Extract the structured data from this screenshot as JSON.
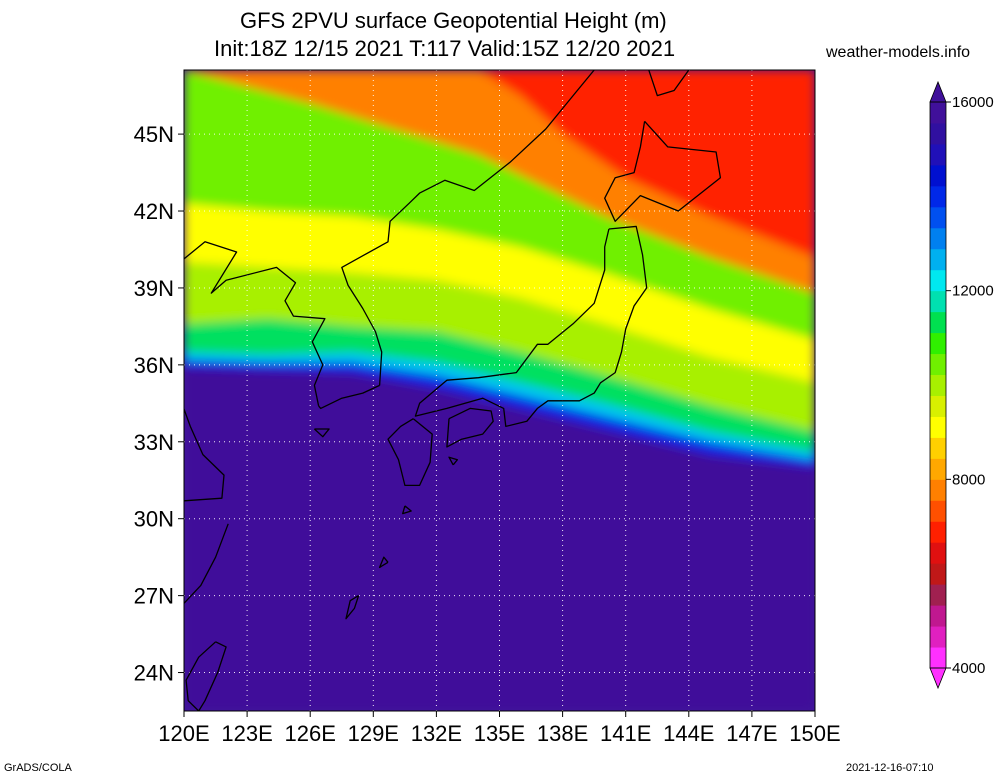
{
  "title": {
    "line1": "GFS 2PVU surface Geopotential Height (m)",
    "line2": "Init:18Z 12/15 2021 T:117 Valid:15Z 12/20 2021"
  },
  "site": "weather-models.info",
  "footer": {
    "left": "GrADS/COLA",
    "right": "2021-12-16-07:10"
  },
  "lat_labels": [
    "45N",
    "42N",
    "39N",
    "36N",
    "33N",
    "30N",
    "27N",
    "24N"
  ],
  "lon_labels": [
    "120E",
    "123E",
    "126E",
    "129E",
    "132E",
    "135E",
    "138E",
    "141E",
    "144E",
    "147E",
    "150E"
  ],
  "colorbar": {
    "labels": [
      "16000",
      "12000",
      "8000",
      "4000"
    ],
    "colors": [
      "#ff30ff",
      "#e020c0",
      "#c01890",
      "#a02050",
      "#c01818",
      "#e01010",
      "#ff2000",
      "#ff5000",
      "#ff8000",
      "#ffa800",
      "#ffd000",
      "#ffff00",
      "#d8f000",
      "#a8f000",
      "#70f000",
      "#30f000",
      "#00e050",
      "#00e0b0",
      "#00e8f0",
      "#00b0f0",
      "#0080f0",
      "#0050f0",
      "#0028e8",
      "#0010d0",
      "#2010b8",
      "#3010a0",
      "#40109a"
    ]
  },
  "map": {
    "lon_range": [
      120,
      150
    ],
    "lat_range": [
      22.5,
      47.5
    ],
    "bands": [
      {
        "color": "#40109a",
        "points": [
          [
            120,
            22.5
          ],
          [
            150,
            22.5
          ],
          [
            150,
            32
          ],
          [
            145,
            32.5
          ],
          [
            140,
            33.5
          ],
          [
            136,
            34.3
          ],
          [
            132,
            35.1
          ],
          [
            128,
            35.7
          ],
          [
            124,
            35.8
          ],
          [
            120,
            35.9
          ]
        ]
      },
      {
        "color": "#0028e8",
        "points": [
          [
            120,
            35.9
          ],
          [
            124,
            35.8
          ],
          [
            128,
            35.7
          ],
          [
            132,
            35.1
          ],
          [
            136,
            34.3
          ],
          [
            140,
            33.5
          ],
          [
            145,
            32.5
          ],
          [
            150,
            32
          ],
          [
            150,
            32.3
          ],
          [
            145,
            33
          ],
          [
            140,
            34
          ],
          [
            136,
            34.8
          ],
          [
            132,
            35.6
          ],
          [
            128,
            36.1
          ],
          [
            124,
            36.1
          ],
          [
            120,
            36.2
          ]
        ]
      },
      {
        "color": "#00c8f0",
        "points": [
          [
            120,
            36.2
          ],
          [
            124,
            36.1
          ],
          [
            128,
            36.1
          ],
          [
            132,
            35.6
          ],
          [
            136,
            34.8
          ],
          [
            140,
            34
          ],
          [
            145,
            33
          ],
          [
            150,
            32.3
          ],
          [
            150,
            32.6
          ],
          [
            145,
            33.4
          ],
          [
            140,
            34.5
          ],
          [
            136,
            35.3
          ],
          [
            132,
            36.1
          ],
          [
            128,
            36.5
          ],
          [
            124,
            36.4
          ],
          [
            120,
            36.5
          ]
        ]
      },
      {
        "color": "#00e060",
        "points": [
          [
            120,
            36.5
          ],
          [
            124,
            36.4
          ],
          [
            128,
            36.5
          ],
          [
            132,
            36.1
          ],
          [
            136,
            35.3
          ],
          [
            140,
            34.5
          ],
          [
            145,
            33.4
          ],
          [
            150,
            32.6
          ],
          [
            150,
            33.4
          ],
          [
            145,
            34.4
          ],
          [
            140,
            35.6
          ],
          [
            136,
            36.5
          ],
          [
            132,
            37.3
          ],
          [
            128,
            37.5
          ],
          [
            124,
            37.8
          ],
          [
            120,
            37.6
          ]
        ]
      },
      {
        "color": "#a8f000",
        "points": [
          [
            120,
            37.6
          ],
          [
            124,
            37.8
          ],
          [
            128,
            37.5
          ],
          [
            132,
            37.3
          ],
          [
            136,
            36.5
          ],
          [
            140,
            35.6
          ],
          [
            145,
            34.4
          ],
          [
            150,
            33.4
          ],
          [
            150,
            35.3
          ],
          [
            145,
            36.3
          ],
          [
            140,
            37.6
          ],
          [
            136,
            38.6
          ],
          [
            132,
            39.3
          ],
          [
            128,
            39.6
          ],
          [
            124,
            39.8
          ],
          [
            120,
            40
          ]
        ]
      },
      {
        "color": "#ffff00",
        "points": [
          [
            120,
            40
          ],
          [
            124,
            39.8
          ],
          [
            128,
            39.6
          ],
          [
            132,
            39.3
          ],
          [
            136,
            38.6
          ],
          [
            140,
            37.6
          ],
          [
            145,
            36.3
          ],
          [
            150,
            35.3
          ],
          [
            150,
            37
          ],
          [
            145,
            38.2
          ],
          [
            140,
            39.6
          ],
          [
            136,
            40.6
          ],
          [
            132,
            41.3
          ],
          [
            128,
            41.8
          ],
          [
            124,
            42
          ],
          [
            120,
            42.3
          ]
        ]
      },
      {
        "color": "#70f000",
        "points": [
          [
            120,
            42.3
          ],
          [
            124,
            42
          ],
          [
            128,
            41.8
          ],
          [
            132,
            41.3
          ],
          [
            136,
            40.6
          ],
          [
            140,
            39.6
          ],
          [
            145,
            38.2
          ],
          [
            150,
            37
          ],
          [
            150,
            38.8
          ],
          [
            145,
            40.2
          ],
          [
            140,
            41.8
          ],
          [
            137,
            43
          ],
          [
            134,
            44.2
          ],
          [
            130,
            45.2
          ],
          [
            126,
            46.2
          ],
          [
            120,
            47.5
          ]
        ]
      },
      {
        "color": "#ff8000",
        "points": [
          [
            120,
            47.5
          ],
          [
            126,
            46.2
          ],
          [
            130,
            45.2
          ],
          [
            134,
            44.2
          ],
          [
            137,
            43
          ],
          [
            140,
            41.8
          ],
          [
            145,
            40.2
          ],
          [
            150,
            38.8
          ],
          [
            150,
            40.2
          ],
          [
            145,
            41.8
          ],
          [
            141,
            43.3
          ],
          [
            138,
            45
          ],
          [
            136,
            46.5
          ],
          [
            134,
            47.5
          ]
        ]
      },
      {
        "color": "#ff2000",
        "points": [
          [
            134,
            47.5
          ],
          [
            136,
            46.5
          ],
          [
            138,
            45
          ],
          [
            141,
            43.3
          ],
          [
            145,
            41.8
          ],
          [
            150,
            40.2
          ],
          [
            150,
            47.5
          ]
        ]
      }
    ],
    "coast": [
      [
        [
          141.9,
          45.5
        ],
        [
          143,
          44.5
        ],
        [
          145.3,
          44.3
        ],
        [
          145.5,
          43.3
        ],
        [
          143.5,
          42
        ],
        [
          141.7,
          42.6
        ],
        [
          140.5,
          41.6
        ],
        [
          140,
          42.5
        ],
        [
          140.5,
          43.3
        ],
        [
          141.4,
          43.5
        ],
        [
          141.7,
          44.5
        ],
        [
          141.9,
          45.5
        ]
      ],
      [
        [
          140.2,
          41.3
        ],
        [
          141.5,
          41.4
        ],
        [
          141.8,
          40.3
        ],
        [
          142,
          39
        ],
        [
          141.4,
          38.3
        ],
        [
          141,
          37.4
        ],
        [
          140.8,
          36.5
        ],
        [
          140.5,
          35.7
        ],
        [
          139.8,
          35.3
        ],
        [
          139.5,
          34.9
        ],
        [
          138.8,
          34.6
        ],
        [
          137.3,
          34.6
        ],
        [
          136.8,
          34.3
        ],
        [
          136.3,
          33.8
        ],
        [
          135.3,
          33.6
        ],
        [
          135.2,
          34.3
        ],
        [
          134.2,
          34.7
        ],
        [
          132.5,
          34.3
        ],
        [
          131,
          34
        ],
        [
          131.2,
          34.5
        ],
        [
          132.5,
          35.4
        ],
        [
          134,
          35.5
        ],
        [
          135.8,
          35.7
        ],
        [
          136.8,
          36.8
        ],
        [
          137.3,
          36.8
        ],
        [
          138.5,
          37.6
        ],
        [
          139.5,
          38.4
        ],
        [
          140,
          39.7
        ],
        [
          140,
          40.6
        ],
        [
          140.2,
          41.3
        ]
      ],
      [
        [
          130.9,
          33.9
        ],
        [
          131.8,
          33.3
        ],
        [
          131.7,
          32.2
        ],
        [
          131.2,
          31.3
        ],
        [
          130.5,
          31.3
        ],
        [
          130.2,
          32.3
        ],
        [
          129.7,
          33.1
        ],
        [
          130.3,
          33.6
        ],
        [
          130.9,
          33.9
        ]
      ],
      [
        [
          132.6,
          33.9
        ],
        [
          133.6,
          34.3
        ],
        [
          134.6,
          34.2
        ],
        [
          134.7,
          33.8
        ],
        [
          134.2,
          33.3
        ],
        [
          133.2,
          33.1
        ],
        [
          132.5,
          32.8
        ],
        [
          132.6,
          33.9
        ]
      ],
      [
        [
          121.5,
          25.2
        ],
        [
          122,
          25
        ],
        [
          121.6,
          24
        ],
        [
          121,
          22.9
        ],
        [
          120.7,
          22.5
        ],
        [
          120.2,
          22.9
        ],
        [
          120.1,
          23.7
        ],
        [
          120.7,
          24.6
        ],
        [
          121.5,
          25.2
        ]
      ],
      [
        [
          126.4,
          34.4
        ],
        [
          126.2,
          35.2
        ],
        [
          126.6,
          36
        ],
        [
          126.1,
          36.9
        ],
        [
          126.7,
          37.8
        ],
        [
          125.2,
          37.9
        ],
        [
          124.8,
          38.5
        ],
        [
          125.3,
          39.2
        ],
        [
          124.4,
          39.8
        ],
        [
          122,
          39.3
        ],
        [
          121.3,
          38.8
        ],
        [
          122.5,
          40.4
        ],
        [
          121,
          40.8
        ],
        [
          119.5,
          39.8
        ]
      ],
      [
        [
          129.3,
          35.2
        ],
        [
          129.4,
          36.5
        ],
        [
          129.1,
          37.3
        ],
        [
          128.5,
          38.2
        ],
        [
          127.8,
          39.1
        ],
        [
          127.5,
          39.8
        ],
        [
          128.6,
          40.3
        ],
        [
          129.7,
          40.8
        ],
        [
          129.8,
          41.6
        ],
        [
          130.7,
          42.3
        ],
        [
          131.2,
          42.7
        ],
        [
          132.4,
          43.2
        ],
        [
          133.8,
          42.8
        ],
        [
          135.5,
          43.9
        ],
        [
          137.2,
          45.2
        ],
        [
          138.5,
          46.5
        ],
        [
          139.5,
          47.5
        ]
      ],
      [
        [
          129.3,
          35.2
        ],
        [
          128.5,
          34.9
        ],
        [
          127.5,
          34.7
        ],
        [
          126.5,
          34.3
        ],
        [
          126.4,
          34.4
        ]
      ],
      [
        [
          120,
          30.7
        ],
        [
          121.8,
          30.8
        ],
        [
          121.9,
          31.7
        ],
        [
          120.9,
          32.5
        ],
        [
          120.3,
          33.6
        ],
        [
          119.9,
          34.5
        ]
      ],
      [
        [
          122.1,
          29.8
        ],
        [
          121.5,
          28.5
        ],
        [
          120.8,
          27.4
        ],
        [
          120,
          26.7
        ]
      ],
      [
        [
          142.1,
          47.5
        ],
        [
          142.5,
          46.5
        ],
        [
          143.3,
          46.7
        ],
        [
          144,
          47.5
        ]
      ],
      [
        [
          128.3,
          27
        ],
        [
          128.1,
          26.5
        ],
        [
          127.7,
          26.1
        ],
        [
          127.9,
          26.8
        ],
        [
          128.3,
          27
        ]
      ],
      [
        [
          129.7,
          28.3
        ],
        [
          129.3,
          28.1
        ],
        [
          129.5,
          28.5
        ],
        [
          129.7,
          28.3
        ]
      ],
      [
        [
          130.5,
          30.5
        ],
        [
          130.8,
          30.3
        ],
        [
          130.4,
          30.2
        ],
        [
          130.5,
          30.5
        ]
      ],
      [
        [
          126.2,
          33.5
        ],
        [
          126.9,
          33.5
        ],
        [
          126.6,
          33.2
        ],
        [
          126.2,
          33.5
        ]
      ],
      [
        [
          132.8,
          32.1
        ],
        [
          133,
          32.3
        ],
        [
          132.6,
          32.4
        ],
        [
          132.8,
          32.1
        ]
      ]
    ]
  }
}
